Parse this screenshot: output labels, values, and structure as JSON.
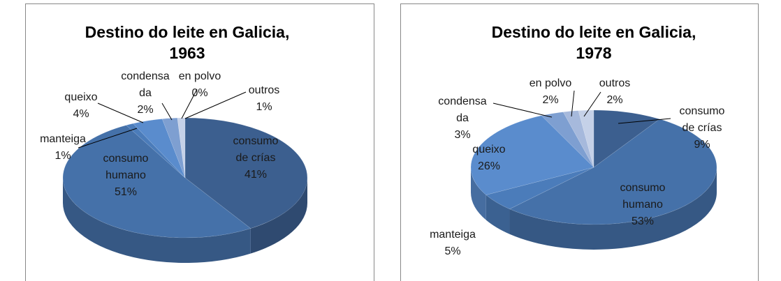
{
  "chart_data": [
    {
      "type": "pie3d",
      "title": "Destino do leite en Galicia,\n1963",
      "categories": [
        "consumo\nde crías",
        "consumo\nhumano",
        "manteiga",
        "queixo",
        "condensa\nda",
        "en polvo",
        "outros"
      ],
      "values": [
        41,
        51,
        1,
        4,
        2,
        0,
        1
      ],
      "value_labels": [
        "41%",
        "51%",
        "1%",
        "4%",
        "2%",
        "0%",
        "1%"
      ],
      "colors": [
        "#3c5f8f",
        "#4571a9",
        "#4b7cba",
        "#5a8ccd",
        "#7e9fd1",
        "#a6b9dc",
        "#c5d1e8"
      ]
    },
    {
      "type": "pie3d",
      "title": "Destino do leite en Galicia,\n1978",
      "categories": [
        "consumo\nde crías",
        "consumo\nhumano",
        "manteiga",
        "queixo",
        "condensa\nda",
        "en polvo",
        "outros"
      ],
      "values": [
        9,
        53,
        5,
        26,
        3,
        2,
        2
      ],
      "value_labels": [
        "9%",
        "53%",
        "5%",
        "26%",
        "3%",
        "2%",
        "2%"
      ],
      "colors": [
        "#3c5f8f",
        "#4571a9",
        "#4b7cba",
        "#5a8ccd",
        "#7e9fd1",
        "#a6b9dc",
        "#c5d1e8"
      ]
    }
  ]
}
